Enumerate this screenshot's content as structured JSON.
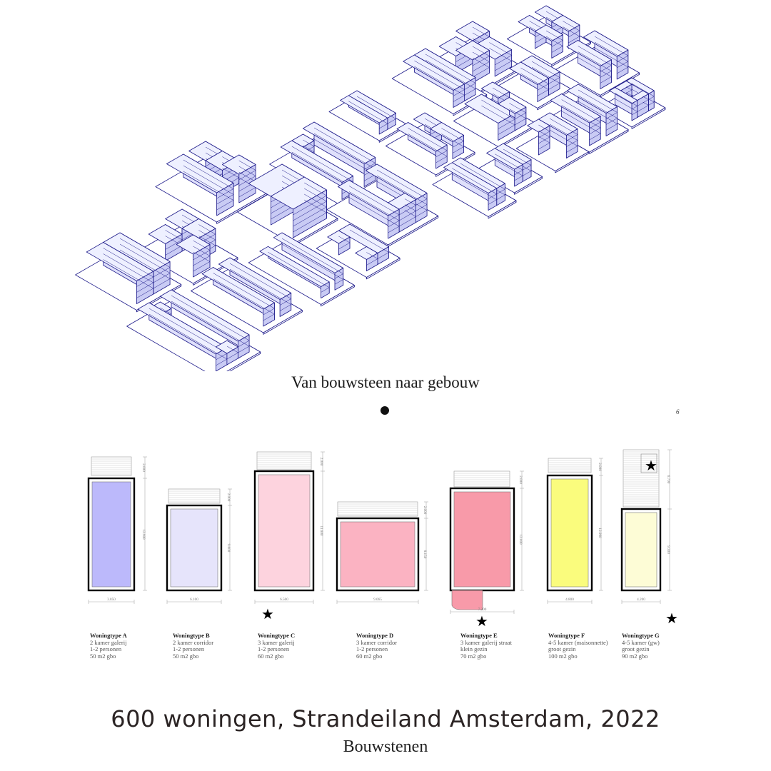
{
  "diagram_caption": "Van bouwsteen naar gebouw",
  "page_number": "6",
  "colors": {
    "iso_fill": "#dfe0fb",
    "iso_top": "#eef0ff",
    "iso_line": "#1d1a8a",
    "A": "#bcb9fb",
    "B": "#e6e4fb",
    "C": "#fdd3de",
    "D": "#fbb3c2",
    "E": "#f89aa9",
    "F": "#fafc7d",
    "G": "#fdfcd6"
  },
  "woningtypes": [
    {
      "id": "A",
      "name": "Woningtype A",
      "lines": [
        "2 kamer galerij",
        "1-2 personen",
        "50 m2 gbo"
      ],
      "dim_width": "3.850",
      "dim_height": "12.900",
      "dim_top": "2.000"
    },
    {
      "id": "B",
      "name": "Woningtype B",
      "lines": [
        "2 kamer corridor",
        "1-2 personen",
        "50 m2 gbo"
      ],
      "dim_width": "6.100",
      "dim_height": "9.600",
      "dim_top": "2.000"
    },
    {
      "id": "C",
      "name": "Woningtype C",
      "lines": [
        "3 kamer galerij",
        "1-2 personen",
        "60 m2 gbo"
      ],
      "dim_width": "6.500",
      "dim_height": "11.800",
      "dim_top": "2.000",
      "starred": true
    },
    {
      "id": "D",
      "name": "Woningtype D",
      "lines": [
        "3 kamer corridor",
        "1-2 personen",
        "60 m2 gbo"
      ],
      "dim_width": "9.065",
      "dim_height": "8.150",
      "dim_top": "2.000"
    },
    {
      "id": "E",
      "name": "Woningtype E",
      "lines": [
        "3 kamer galerij straat",
        "klein gezin",
        "70 m2 gbo"
      ],
      "dim_width": "7.200",
      "dim_height": "12.000",
      "dim_top": "2.000",
      "starred": true
    },
    {
      "id": "F",
      "name": "Woningtype F",
      "lines": [
        "4-5 kamer (maisonnette)",
        "groot gezin",
        "100 m2 gbo"
      ],
      "dim_width": "4.800",
      "dim_height": "12.900",
      "dim_top": "2.000"
    },
    {
      "id": "G",
      "name": "Woningtype G",
      "lines": [
        "4-5 kamer (gw)",
        "groot gezin",
        "90 m2 gbo"
      ],
      "dim_width": "4.200",
      "dim_height": "9.300",
      "dim_top": "6.700",
      "starred": true
    }
  ],
  "title": "600 woningen, Strandeiland Amsterdam, 2022",
  "subtitle": "Bouwstenen"
}
